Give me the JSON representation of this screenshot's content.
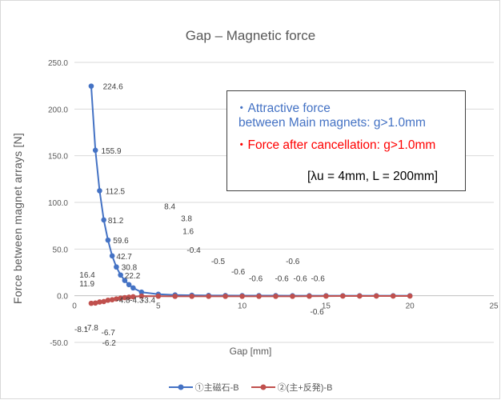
{
  "chart_data": {
    "type": "scatter",
    "title": "Gap – Magnetic force",
    "xlabel": "Gap [mm]",
    "ylabel": "Force between magnet arrays [N]",
    "xlim": [
      0,
      25
    ],
    "ylim": [
      -50,
      250
    ],
    "x_ticks": [
      "0",
      "5",
      "10",
      "15",
      "20",
      "25"
    ],
    "y_ticks": [
      "-50.0",
      "0.0",
      "50.0",
      "100.0",
      "150.0",
      "200.0",
      "250.0"
    ],
    "grid": "horizontal",
    "legend_position": "bottom",
    "series": [
      {
        "name": "①主磁石-B",
        "color": "#4472c4",
        "x": [
          1.0,
          1.25,
          1.5,
          1.75,
          2.0,
          2.25,
          2.5,
          2.75,
          3.0,
          3.25,
          3.5,
          4.0,
          5.0,
          6.0,
          7.0,
          8.0,
          9.0,
          10.0,
          11.0,
          12.0,
          13.0,
          14.0,
          15.0,
          16.0,
          17.0,
          18.0,
          19.0,
          20.0
        ],
        "y": [
          224.6,
          155.9,
          112.5,
          81.2,
          59.6,
          42.7,
          30.8,
          22.2,
          16.4,
          11.9,
          8.4,
          3.8,
          1.6,
          0.8,
          0.5,
          0.3,
          0.2,
          0.1,
          0.1,
          0.1,
          0.0,
          0.0,
          0.0,
          0.0,
          0.0,
          0.0,
          0.0,
          0.0
        ],
        "labels": [
          "224.6",
          "155.9",
          "112.5",
          "81.2",
          "59.6",
          "42.7",
          "30.8",
          "22.2",
          "16.4",
          "11.9",
          "8.4",
          "3.8",
          "1.6",
          "",
          "",
          "",
          "",
          "",
          "",
          "",
          "",
          "",
          "",
          "",
          "",
          "",
          "",
          ""
        ]
      },
      {
        "name": "②(主+反発)-B",
        "color": "#c0504d",
        "x": [
          1.0,
          1.25,
          1.5,
          1.75,
          2.0,
          2.25,
          2.5,
          2.75,
          3.0,
          3.25,
          3.5,
          4.0,
          5.0,
          6.0,
          7.0,
          8.0,
          9.0,
          10.0,
          11.0,
          12.0,
          13.0,
          14.0,
          15.0,
          16.0,
          17.0,
          18.0,
          19.0,
          20.0
        ],
        "y": [
          -8.1,
          -7.8,
          -6.7,
          -6.2,
          -4.8,
          -4.3,
          -3.4,
          -2.6,
          -2.0,
          -1.5,
          -1.1,
          -0.4,
          -0.5,
          -0.6,
          -0.6,
          -0.6,
          -0.6,
          -0.6,
          -0.6,
          -0.6,
          -0.6,
          -0.5,
          -0.4,
          -0.3,
          -0.3,
          -0.3,
          -0.3,
          -0.3
        ],
        "labels": [
          "-8.1",
          "-7.8",
          "-6.7",
          "-6.2",
          "-4.8",
          "-4.3",
          "-3.4",
          "",
          "",
          "",
          "",
          "-0.4",
          "-0.5",
          "-0.6",
          "-0.6",
          "-0.6",
          "-0.6",
          "-0.6",
          "-0.6",
          "-0.6",
          "",
          "",
          "",
          "",
          "",
          "",
          "",
          ""
        ]
      }
    ],
    "annotations": [
      "・Attractive force",
      "between Main magnets: g>1.0mm",
      "・Force after cancellation: g>1.0mm",
      "[λu = 4mm, L = 200mm]"
    ]
  }
}
